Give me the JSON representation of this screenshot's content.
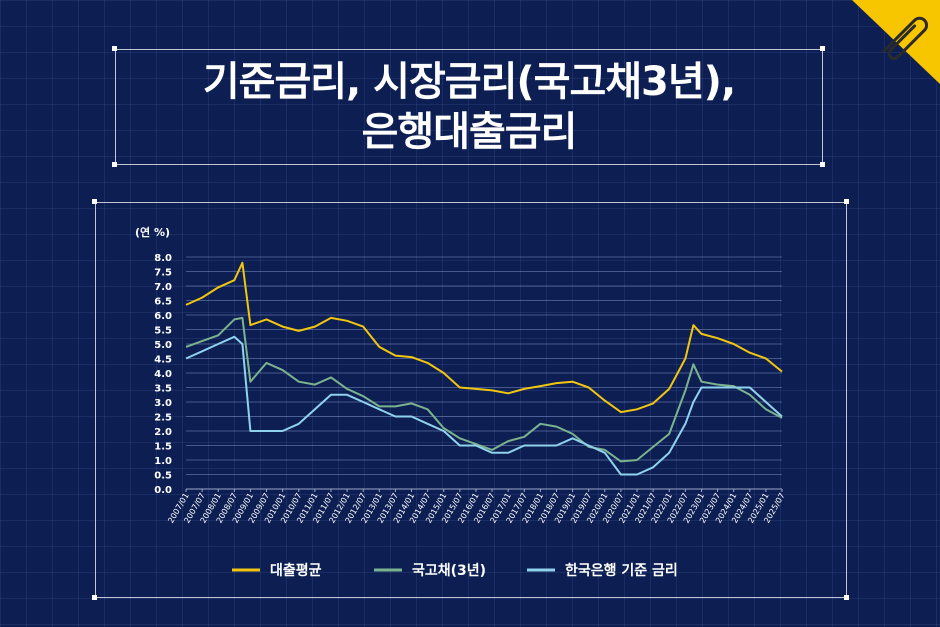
{
  "title": {
    "line1": "기준금리, 시장금리(국고채3년),",
    "line2": "은행대출금리"
  },
  "icon": "paperclip-icon",
  "colors": {
    "background": "#0d1f52",
    "loan": "#f2c511",
    "bond": "#7bb38f",
    "base": "#8fd2ee",
    "badge": "#f7c600"
  },
  "chart_data": {
    "type": "line",
    "ylabel": "(연 %)",
    "ylim": [
      0,
      8
    ],
    "yticks": [
      "0.0",
      "0.5",
      "1.0",
      "1.5",
      "2.0",
      "2.5",
      "3.0",
      "3.5",
      "4.0",
      "4.5",
      "5.0",
      "5.5",
      "6.0",
      "6.5",
      "7.0",
      "7.5",
      "8.0"
    ],
    "xticks": [
      "2007/01",
      "2007/07",
      "2008/01",
      "2008/07",
      "2009/01",
      "2009/07",
      "2010/01",
      "2010/07",
      "2011/01",
      "2011/07",
      "2012/01",
      "2012/07",
      "2013/01",
      "2013/07",
      "2014/01",
      "2014/07",
      "2015/01",
      "2015/07",
      "2016/01",
      "2016/07",
      "2017/01",
      "2017/07",
      "2018/01",
      "2018/07",
      "2019/01",
      "2019/07",
      "2020/01",
      "2020/07",
      "2021/01",
      "2021/07",
      "2022/01",
      "2022/07",
      "2023/01",
      "2023/07",
      "2024/01",
      "2024/07",
      "2025/01",
      "2025/07"
    ],
    "x": [
      "2007/01",
      "2007/07",
      "2008/01",
      "2008/07",
      "2008/10",
      "2009/01",
      "2009/07",
      "2010/01",
      "2010/07",
      "2011/01",
      "2011/07",
      "2012/01",
      "2012/07",
      "2013/01",
      "2013/07",
      "2014/01",
      "2014/07",
      "2015/01",
      "2015/07",
      "2016/01",
      "2016/07",
      "2017/01",
      "2017/07",
      "2018/01",
      "2018/07",
      "2019/01",
      "2019/07",
      "2020/01",
      "2020/07",
      "2021/01",
      "2021/07",
      "2022/01",
      "2022/07",
      "2022/10",
      "2023/01",
      "2023/07",
      "2024/01",
      "2024/07",
      "2025/01",
      "2025/07"
    ],
    "grid": true,
    "legend_position": "bottom",
    "series": [
      {
        "name": "대출평균",
        "values": [
          6.35,
          6.6,
          6.95,
          7.2,
          7.8,
          5.65,
          5.85,
          5.6,
          5.45,
          5.6,
          5.9,
          5.8,
          5.6,
          4.9,
          4.6,
          4.55,
          4.35,
          4.0,
          3.5,
          3.45,
          3.4,
          3.3,
          3.45,
          3.55,
          3.65,
          3.7,
          3.5,
          3.05,
          2.65,
          2.75,
          2.95,
          3.45,
          4.5,
          5.65,
          5.35,
          5.2,
          5.0,
          4.7,
          4.5,
          4.05
        ]
      },
      {
        "name": "국고채(3년)",
        "values": [
          4.9,
          5.1,
          5.3,
          5.85,
          5.9,
          3.7,
          4.35,
          4.1,
          3.7,
          3.6,
          3.85,
          3.45,
          3.2,
          2.85,
          2.85,
          2.95,
          2.75,
          2.1,
          1.75,
          1.55,
          1.35,
          1.65,
          1.8,
          2.25,
          2.15,
          1.9,
          1.45,
          1.35,
          0.95,
          1.0,
          1.45,
          1.9,
          3.4,
          4.3,
          3.7,
          3.6,
          3.55,
          3.25,
          2.75,
          2.45
        ]
      },
      {
        "name": "한국은행 기준 금리",
        "values": [
          4.5,
          4.75,
          5.0,
          5.25,
          5.0,
          2.0,
          2.0,
          2.0,
          2.25,
          2.75,
          3.25,
          3.25,
          3.0,
          2.75,
          2.5,
          2.5,
          2.25,
          2.0,
          1.5,
          1.5,
          1.25,
          1.25,
          1.5,
          1.5,
          1.5,
          1.75,
          1.5,
          1.25,
          0.5,
          0.5,
          0.75,
          1.25,
          2.25,
          3.0,
          3.5,
          3.5,
          3.5,
          3.5,
          3.0,
          2.5
        ]
      }
    ]
  }
}
